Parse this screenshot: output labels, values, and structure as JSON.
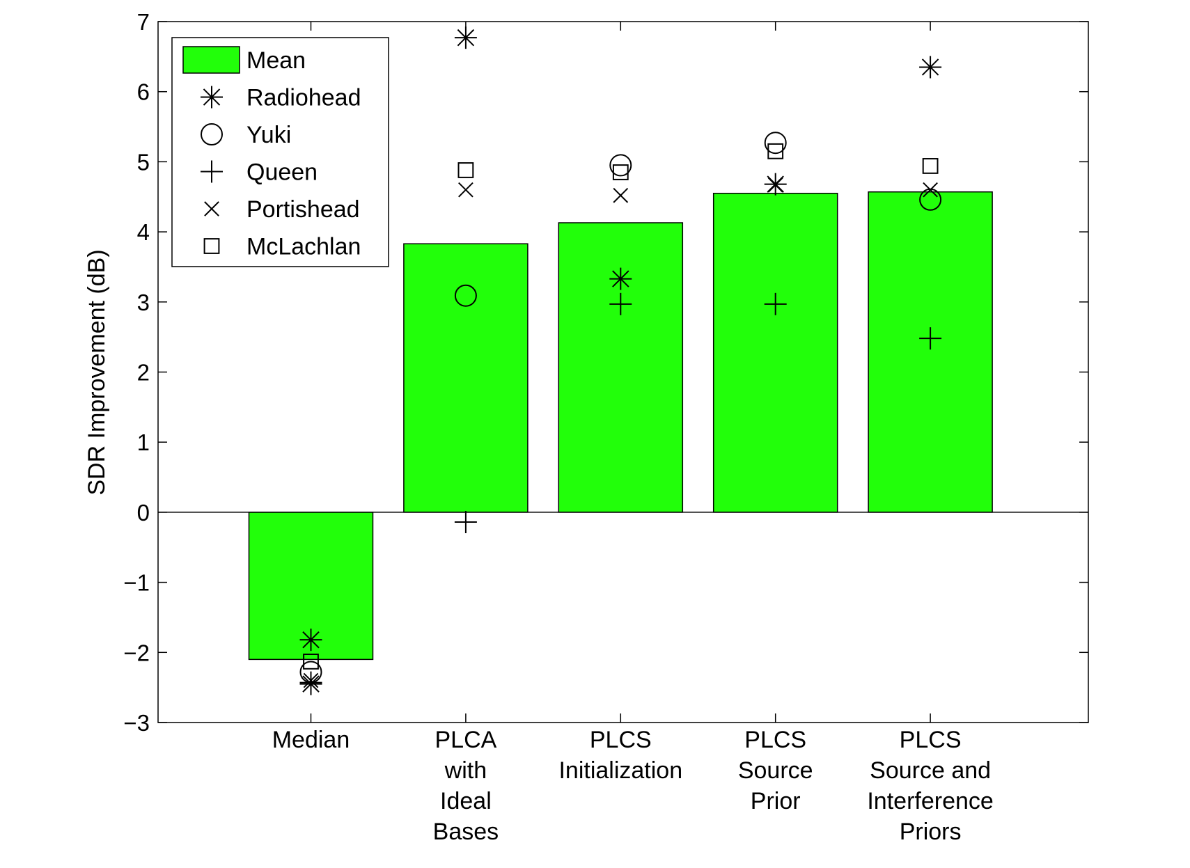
{
  "chart_data": {
    "type": "bar",
    "title": "",
    "xlabel": "",
    "ylabel": "SDR Improvement (dB)",
    "ylim": [
      -3,
      7
    ],
    "yticks": [
      -3,
      -2,
      -1,
      0,
      1,
      2,
      3,
      4,
      5,
      6,
      7
    ],
    "ytick_labels": [
      "−3",
      "−2",
      "−1",
      "0",
      "1",
      "2",
      "3",
      "4",
      "5",
      "6",
      "7"
    ],
    "grid": false,
    "legend_position": "top-left",
    "bar_color": "#22ff0a",
    "categories": [
      [
        "Median"
      ],
      [
        "PLCA",
        "with",
        "Ideal",
        "Bases"
      ],
      [
        "PLCS",
        "Initialization"
      ],
      [
        "PLCS",
        "Source",
        "Prior"
      ],
      [
        "PLCS",
        "Source and",
        "Interference",
        "Priors"
      ]
    ],
    "series": [
      {
        "name": "Mean",
        "kind": "bar",
        "values": [
          -2.1,
          3.83,
          4.13,
          4.55,
          4.57
        ]
      },
      {
        "name": "Radiohead",
        "kind": "marker",
        "marker": "asterisk",
        "values": [
          [
            -1.82,
            -2.45
          ],
          6.77,
          3.33,
          4.68,
          6.35
        ]
      },
      {
        "name": "Yuki",
        "kind": "marker",
        "marker": "circle",
        "values": [
          -2.28,
          3.09,
          4.95,
          5.27,
          4.46
        ]
      },
      {
        "name": "Queen",
        "kind": "marker",
        "marker": "plus",
        "values": [
          -2.43,
          -0.14,
          2.97,
          2.97,
          2.48
        ]
      },
      {
        "name": "Portishead",
        "kind": "marker",
        "marker": "x",
        "values": [
          -2.4,
          4.6,
          4.52,
          4.67,
          4.6
        ]
      },
      {
        "name": "McLachlan",
        "kind": "marker",
        "marker": "square",
        "values": [
          -2.13,
          4.88,
          4.85,
          5.15,
          4.94
        ]
      }
    ]
  }
}
